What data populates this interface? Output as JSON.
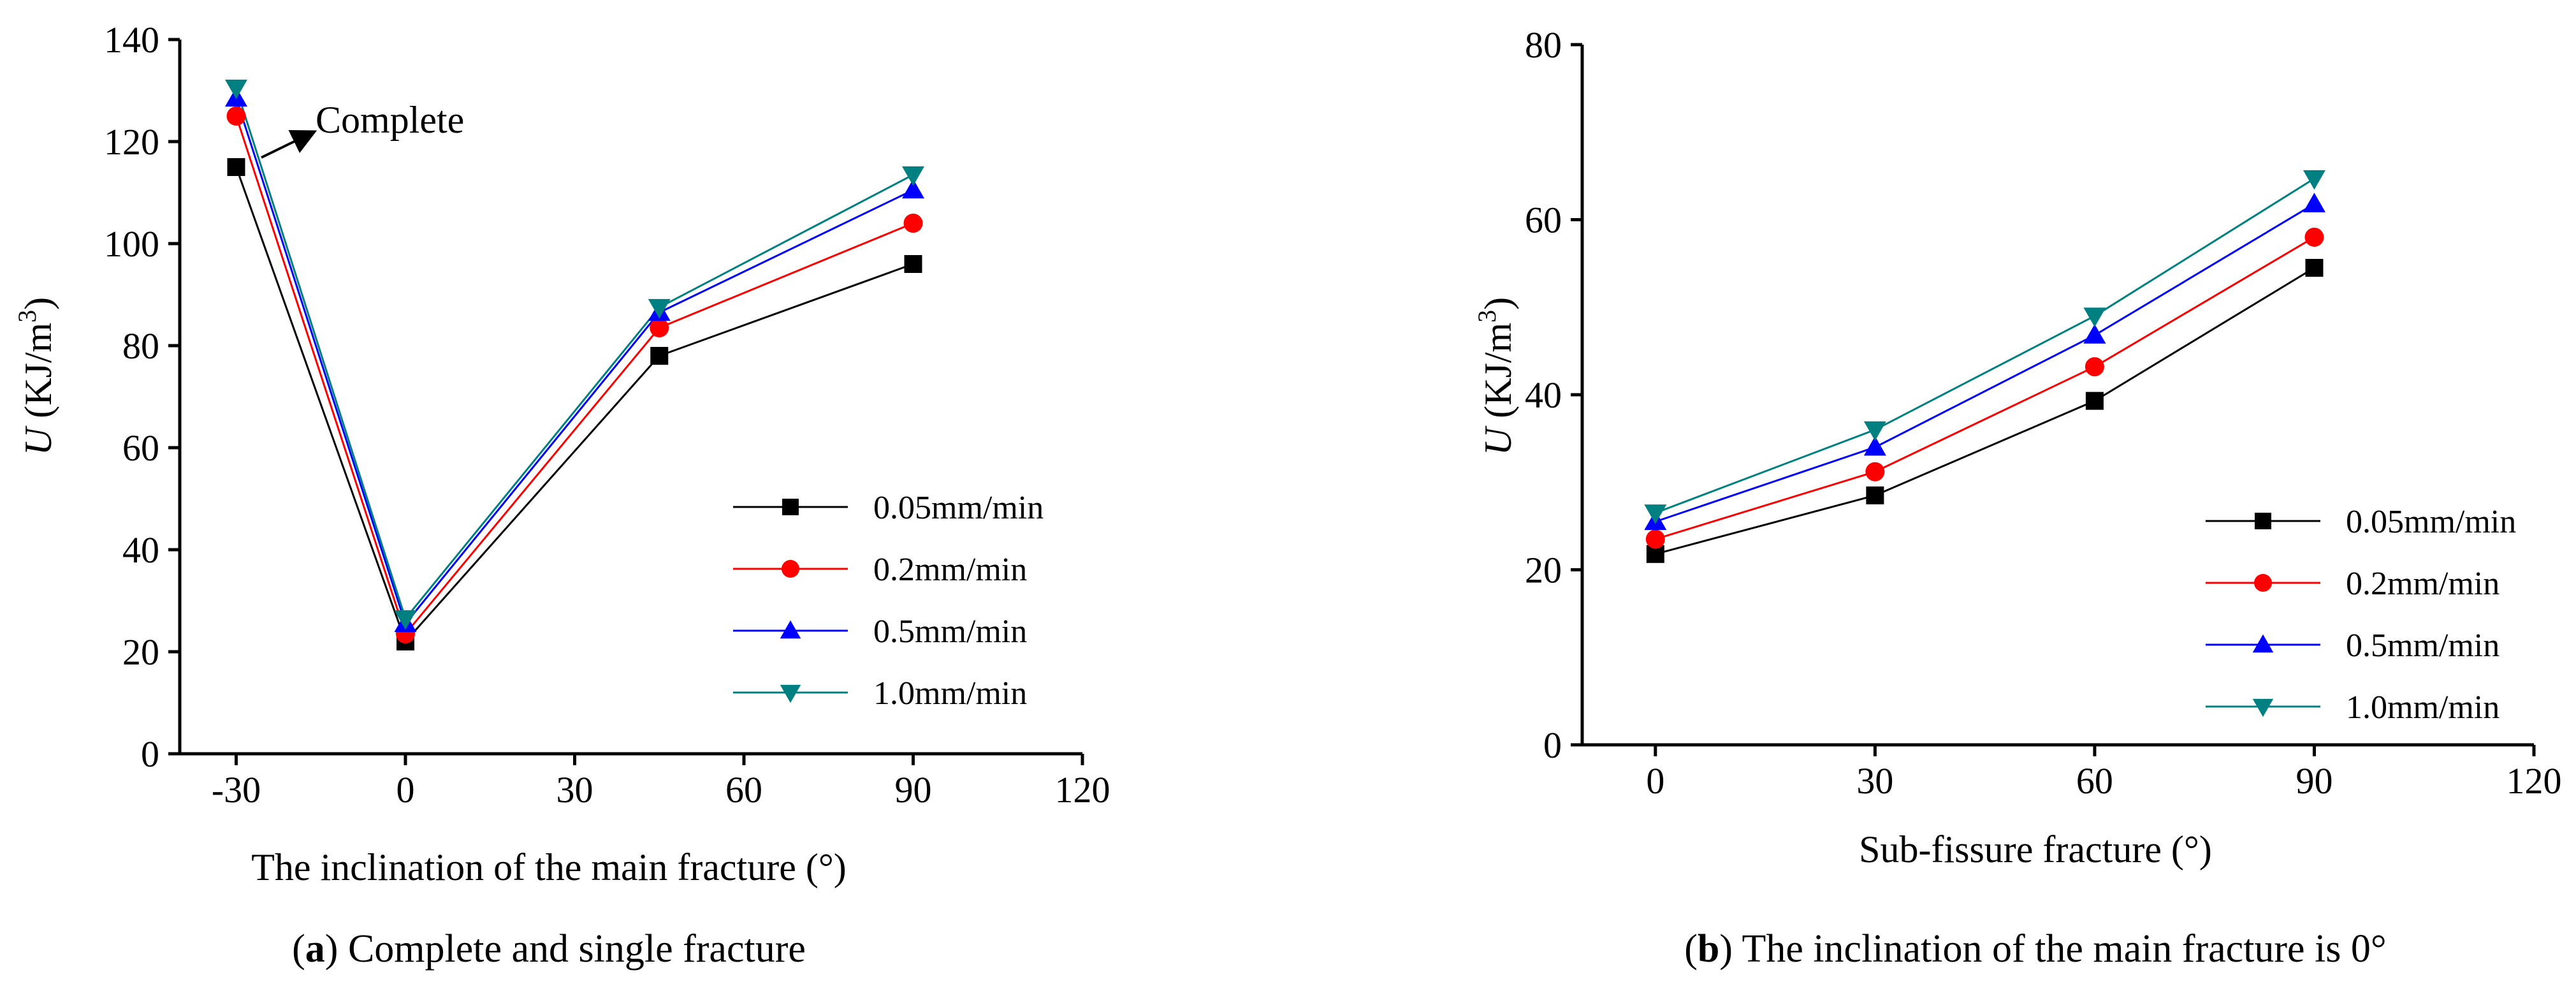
{
  "chart_data": [
    {
      "type": "line",
      "caption_letter": "a",
      "caption_text": " Complete and single fracture",
      "xlabel": "The inclination of the main fracture (°)",
      "ylabel_italic": "U",
      "ylabel_unit": " (KJ/m",
      "ylabel_sup": "3",
      "ylabel_close": ")",
      "xlim": [
        -40,
        120
      ],
      "ylim": [
        0,
        140
      ],
      "xticks": [
        -30,
        0,
        30,
        60,
        90,
        120
      ],
      "xtick_labels": [
        "-30",
        "0",
        "30",
        "60",
        "90",
        "120"
      ],
      "yticks": [
        0,
        20,
        40,
        60,
        80,
        100,
        120,
        140
      ],
      "ytick_labels": [
        "0",
        "20",
        "40",
        "60",
        "80",
        "100",
        "120",
        "140"
      ],
      "x": [
        -30,
        0,
        45,
        90
      ],
      "series": [
        {
          "name": "0.05mm/min",
          "marker": "square",
          "color": "#000000",
          "values": [
            115,
            22,
            78,
            96
          ]
        },
        {
          "name": "0.2mm/min",
          "marker": "circle",
          "color": "#ff0000",
          "values": [
            125,
            23.5,
            83.5,
            104
          ]
        },
        {
          "name": "0.5mm/min",
          "marker": "triangle-up",
          "color": "#0000ff",
          "values": [
            128.5,
            25.5,
            86.5,
            110.5
          ]
        },
        {
          "name": "1.0mm/min",
          "marker": "triangle-down",
          "color": "#008080",
          "values": [
            130.5,
            26.5,
            87.5,
            113.5
          ]
        }
      ],
      "annotation": {
        "text": "Complete",
        "arrow_to": "-30 point group"
      },
      "legend_position": "bottom-right"
    },
    {
      "type": "line",
      "caption_letter": "b",
      "caption_text": " The inclination of the main fracture is 0°",
      "xlabel": "Sub-fissure fracture (°)",
      "ylabel_italic": "U",
      "ylabel_unit": " (KJ/m",
      "ylabel_sup": "3",
      "ylabel_close": ")",
      "xlim": [
        -10,
        120
      ],
      "ylim": [
        0,
        80
      ],
      "xticks": [
        0,
        30,
        60,
        90,
        120
      ],
      "xtick_labels": [
        "0",
        "30",
        "60",
        "90",
        "120"
      ],
      "yticks": [
        0,
        20,
        40,
        60,
        80
      ],
      "ytick_labels": [
        "0",
        "20",
        "40",
        "60",
        "80"
      ],
      "x": [
        0,
        30,
        60,
        90
      ],
      "series": [
        {
          "name": "0.05mm/min",
          "marker": "square",
          "color": "#000000",
          "values": [
            21.8,
            28.5,
            39.3,
            54.5
          ]
        },
        {
          "name": "0.2mm/min",
          "marker": "circle",
          "color": "#ff0000",
          "values": [
            23.5,
            31.2,
            43.2,
            58
          ]
        },
        {
          "name": "0.5mm/min",
          "marker": "triangle-up",
          "color": "#0000ff",
          "values": [
            25.5,
            34,
            46.8,
            61.8
          ]
        },
        {
          "name": "1.0mm/min",
          "marker": "triangle-down",
          "color": "#008080",
          "values": [
            26.5,
            36,
            49,
            64.7
          ]
        }
      ],
      "legend_position": "bottom-right"
    }
  ]
}
